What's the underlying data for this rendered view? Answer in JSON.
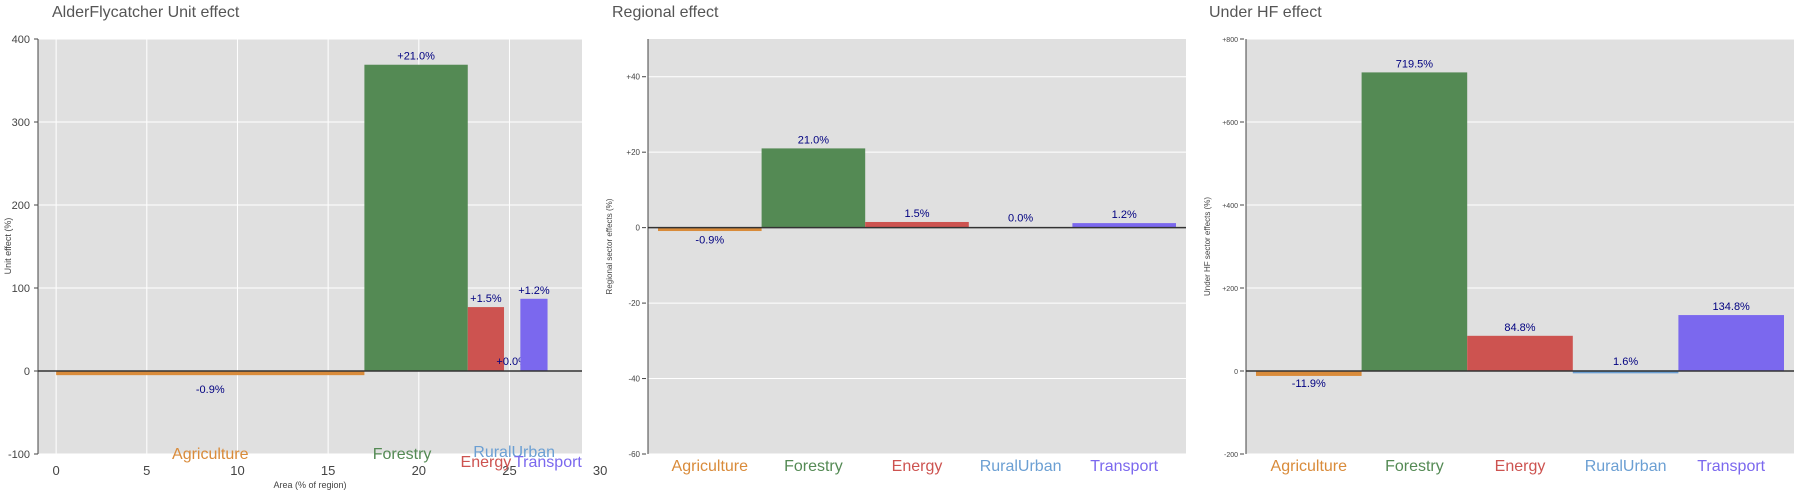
{
  "panels": [
    {
      "title": "AlderFlycatcher Unit effect"
    },
    {
      "title": "Regional effect"
    },
    {
      "title": "Under HF effect"
    }
  ],
  "colors": {
    "Agriculture": "#d98b3a",
    "Forestry": "#548a54",
    "Energy": "#cd5350",
    "RuralUrban": "#6b9fd3",
    "Transport": "#7b68ee",
    "plot_bg": "#e0e0e0",
    "label": "#000080"
  },
  "chart_data": [
    {
      "type": "bar",
      "title": "AlderFlycatcher Unit effect",
      "xlabel": "Area (% of region)",
      "ylabel": "Unit effect (%)",
      "xlim": [
        -1,
        29
      ],
      "ylim": [
        -100,
        400
      ],
      "xticks": [
        0,
        5,
        10,
        15,
        20,
        25,
        30
      ],
      "yticks": [
        -100,
        0,
        100,
        200,
        300,
        400
      ],
      "bars": [
        {
          "name": "Agriculture",
          "x0": 0,
          "x1": 17,
          "value": -5,
          "label": "-0.9%"
        },
        {
          "name": "Forestry",
          "x0": 17,
          "x1": 22.7,
          "value": 369,
          "label": "+21.0%"
        },
        {
          "name": "Energy",
          "x0": 22.7,
          "x1": 24.7,
          "value": 77,
          "label": "+1.5%"
        },
        {
          "name": "RuralUrban",
          "x0": 24.7,
          "x1": 25.6,
          "value": 0,
          "label": "+0.0%"
        },
        {
          "name": "Transport",
          "x0": 25.6,
          "x1": 27.1,
          "value": 87,
          "label": "+1.2%"
        }
      ]
    },
    {
      "type": "bar",
      "title": "Regional effect",
      "ylabel": "Regional sector effects (%)",
      "ylim": [
        -60,
        50
      ],
      "yticks": [
        -60,
        -40,
        -20,
        0,
        20,
        40
      ],
      "ytick_labels": [
        "-60",
        "-40",
        "-20",
        "0",
        "+20",
        "+40"
      ],
      "categories": [
        "Agriculture",
        "Forestry",
        "Energy",
        "RuralUrban",
        "Transport"
      ],
      "values": [
        -0.9,
        21.0,
        1.5,
        0.0,
        1.2
      ],
      "labels": [
        "-0.9%",
        "21.0%",
        "1.5%",
        "0.0%",
        "1.2%"
      ]
    },
    {
      "type": "bar",
      "title": "Under HF effect",
      "ylabel": "Under HF sector effects (%)",
      "ylim": [
        -200,
        800
      ],
      "yticks": [
        -200,
        0,
        200,
        400,
        600,
        800
      ],
      "ytick_labels": [
        "-200",
        "0",
        "+200",
        "+400",
        "+600",
        "+800"
      ],
      "categories": [
        "Agriculture",
        "Forestry",
        "Energy",
        "RuralUrban",
        "Transport"
      ],
      "values": [
        -11.9,
        719.5,
        84.8,
        1.6,
        134.8
      ],
      "labels": [
        "-11.9%",
        "719.5%",
        "84.8%",
        "1.6%",
        "134.8%"
      ]
    }
  ]
}
